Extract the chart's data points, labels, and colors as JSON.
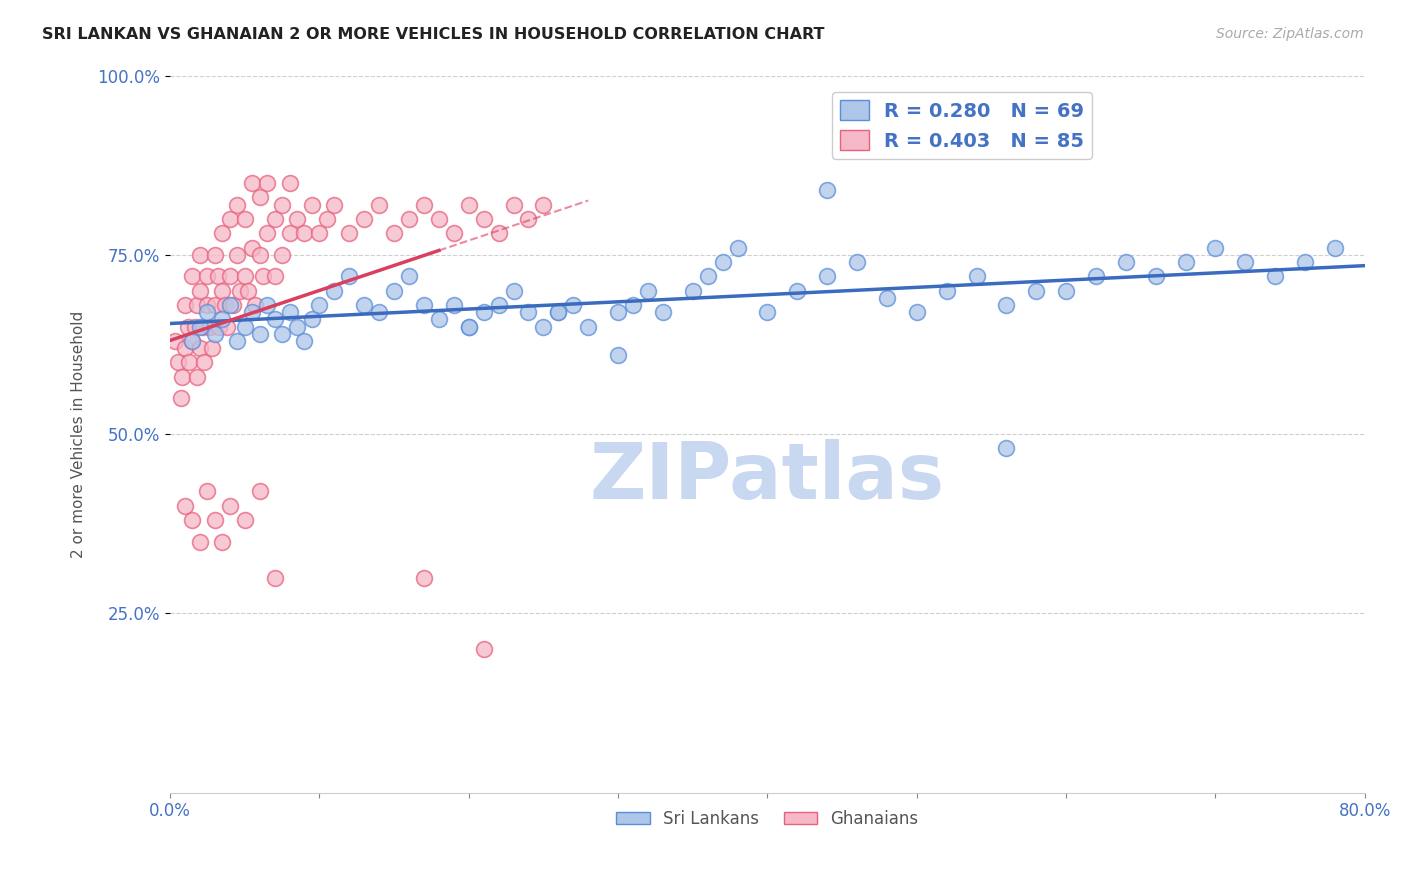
{
  "title": "SRI LANKAN VS GHANAIAN 2 OR MORE VEHICLES IN HOUSEHOLD CORRELATION CHART",
  "source": "Source: ZipAtlas.com",
  "ylabel": "2 or more Vehicles in Household",
  "x_min": 0.0,
  "x_max": 80.0,
  "y_min": 0.0,
  "y_max": 100.0,
  "legend_label_1": "Sri Lankans",
  "legend_label_2": "Ghanaians",
  "R_sri": 0.28,
  "N_sri": 69,
  "R_gha": 0.403,
  "N_gha": 85,
  "sri_color": "#aec6e8",
  "sri_edge": "#5b8dd9",
  "gha_color": "#f5b8c8",
  "gha_edge": "#e8607a",
  "trend_sri_color": "#3a6bbf",
  "trend_gha_color": "#d94060",
  "watermark_color": "#c8d8f0",
  "background_color": "#ffffff",
  "grid_color": "#bbbbbb",
  "title_color": "#222222",
  "source_color": "#aaaaaa",
  "axis_label_color": "#4472c4",
  "legend_r_color": "#4472c4",
  "sri_x": [
    1.5,
    2.0,
    2.5,
    3.0,
    3.5,
    4.0,
    4.5,
    5.0,
    5.5,
    6.0,
    6.5,
    7.0,
    7.5,
    8.0,
    8.5,
    9.0,
    9.5,
    10.0,
    11.0,
    12.0,
    13.0,
    14.0,
    15.0,
    16.0,
    17.0,
    18.0,
    19.0,
    20.0,
    21.0,
    22.0,
    23.0,
    24.0,
    25.0,
    26.0,
    27.0,
    28.0,
    30.0,
    31.0,
    32.0,
    33.0,
    35.0,
    36.0,
    37.0,
    38.0,
    40.0,
    42.0,
    44.0,
    46.0,
    48.0,
    50.0,
    52.0,
    54.0,
    56.0,
    58.0,
    60.0,
    62.0,
    64.0,
    66.0,
    68.0,
    70.0,
    72.0,
    74.0,
    76.0,
    78.0,
    56.0,
    44.0,
    30.0,
    20.0,
    26.0
  ],
  "sri_y": [
    63.0,
    65.0,
    67.0,
    64.0,
    66.0,
    68.0,
    63.0,
    65.0,
    67.0,
    64.0,
    68.0,
    66.0,
    64.0,
    67.0,
    65.0,
    63.0,
    66.0,
    68.0,
    70.0,
    72.0,
    68.0,
    67.0,
    70.0,
    72.0,
    68.0,
    66.0,
    68.0,
    65.0,
    67.0,
    68.0,
    70.0,
    67.0,
    65.0,
    67.0,
    68.0,
    65.0,
    67.0,
    68.0,
    70.0,
    67.0,
    70.0,
    72.0,
    74.0,
    76.0,
    67.0,
    70.0,
    72.0,
    74.0,
    69.0,
    67.0,
    70.0,
    72.0,
    68.0,
    70.0,
    70.0,
    72.0,
    74.0,
    72.0,
    74.0,
    76.0,
    74.0,
    72.0,
    74.0,
    76.0,
    48.0,
    84.0,
    61.0,
    65.0,
    67.0
  ],
  "gha_x": [
    0.3,
    0.5,
    0.7,
    0.8,
    1.0,
    1.0,
    1.2,
    1.3,
    1.5,
    1.5,
    1.7,
    1.8,
    1.8,
    2.0,
    2.0,
    2.0,
    2.2,
    2.3,
    2.5,
    2.5,
    2.7,
    2.8,
    3.0,
    3.0,
    3.2,
    3.3,
    3.5,
    3.5,
    3.7,
    3.8,
    4.0,
    4.0,
    4.2,
    4.5,
    4.5,
    4.7,
    5.0,
    5.0,
    5.2,
    5.5,
    5.5,
    5.7,
    6.0,
    6.0,
    6.2,
    6.5,
    6.5,
    7.0,
    7.0,
    7.5,
    7.5,
    8.0,
    8.0,
    8.5,
    9.0,
    9.5,
    10.0,
    10.5,
    11.0,
    12.0,
    13.0,
    14.0,
    15.0,
    16.0,
    17.0,
    18.0,
    19.0,
    20.0,
    21.0,
    22.0,
    23.0,
    24.0,
    25.0,
    1.0,
    1.5,
    2.0,
    2.5,
    3.0,
    3.5,
    4.0,
    5.0,
    6.0,
    7.0,
    17.0,
    21.0
  ],
  "gha_y": [
    63.0,
    60.0,
    55.0,
    58.0,
    62.0,
    68.0,
    65.0,
    60.0,
    63.0,
    72.0,
    65.0,
    58.0,
    68.0,
    62.0,
    70.0,
    75.0,
    65.0,
    60.0,
    68.0,
    72.0,
    65.0,
    62.0,
    68.0,
    75.0,
    72.0,
    65.0,
    70.0,
    78.0,
    68.0,
    65.0,
    72.0,
    80.0,
    68.0,
    75.0,
    82.0,
    70.0,
    72.0,
    80.0,
    70.0,
    76.0,
    85.0,
    68.0,
    75.0,
    83.0,
    72.0,
    78.0,
    85.0,
    72.0,
    80.0,
    75.0,
    82.0,
    78.0,
    85.0,
    80.0,
    78.0,
    82.0,
    78.0,
    80.0,
    82.0,
    78.0,
    80.0,
    82.0,
    78.0,
    80.0,
    82.0,
    80.0,
    78.0,
    82.0,
    80.0,
    78.0,
    82.0,
    80.0,
    82.0,
    40.0,
    38.0,
    35.0,
    42.0,
    38.0,
    35.0,
    40.0,
    38.0,
    42.0,
    30.0,
    30.0,
    20.0
  ]
}
